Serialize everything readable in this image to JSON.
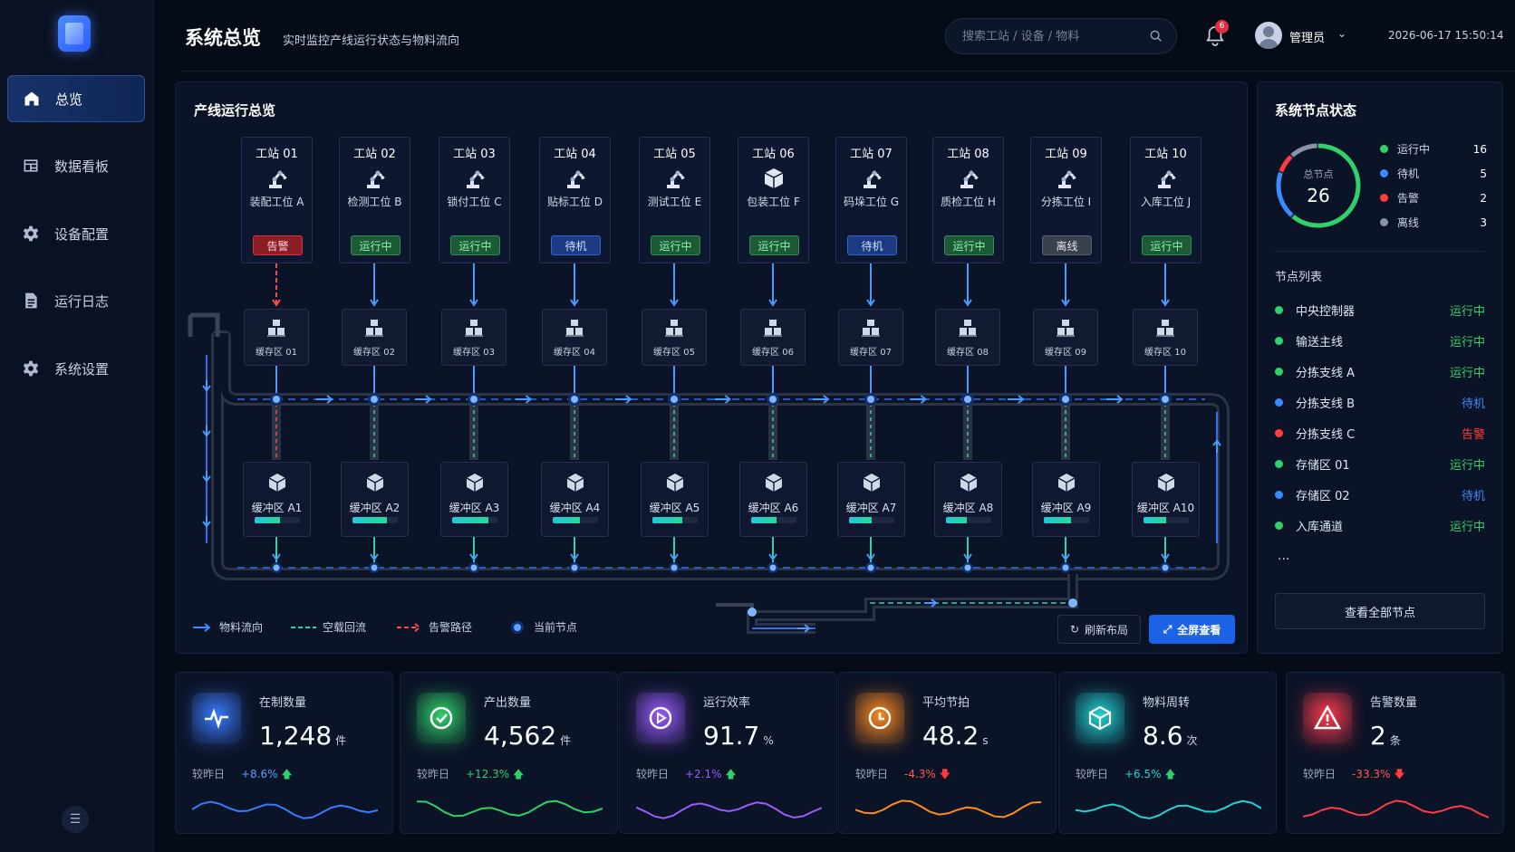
{
  "header": {
    "title": "系统总览",
    "subtitle": "实时监控产线运行状态与物料流向",
    "search_placeholder": "搜索工站 / 设备 / 物料",
    "notification_count": "6",
    "user": "管理员",
    "datetime": "2026-06-17 15:50:14"
  },
  "nav": [
    {
      "label": "总览",
      "icon": "home-icon"
    },
    {
      "label": "数据看板",
      "icon": "dashboard-icon"
    },
    {
      "label": "设备配置",
      "icon": "gear-icon"
    },
    {
      "label": "运行日志",
      "icon": "document-icon"
    },
    {
      "label": "系统设置",
      "icon": "settings-icon"
    }
  ],
  "main": {
    "title": "产线运行总览",
    "stations": [
      {
        "name": "工站 01",
        "sub": "装配工位 A",
        "status": "告警",
        "kind": "alarm",
        "icon": "robot-arm-icon"
      },
      {
        "name": "工站 02",
        "sub": "检测工位 B",
        "status": "运行中",
        "kind": "run",
        "icon": "robot-arm-icon"
      },
      {
        "name": "工站 03",
        "sub": "锁付工位 C",
        "status": "运行中",
        "kind": "run",
        "icon": "robot-arm-icon"
      },
      {
        "name": "工站 04",
        "sub": "贴标工位 D",
        "status": "待机",
        "kind": "idle",
        "icon": "robot-arm-icon"
      },
      {
        "name": "工站 05",
        "sub": "测试工位 E",
        "status": "运行中",
        "kind": "run",
        "icon": "robot-arm-icon"
      },
      {
        "name": "工站 06",
        "sub": "包装工位 F",
        "status": "运行中",
        "kind": "run",
        "icon": "package-icon"
      },
      {
        "name": "工站 07",
        "sub": "码垛工位 G",
        "status": "待机",
        "kind": "idle",
        "icon": "robot-arm-icon"
      },
      {
        "name": "工站 08",
        "sub": "质检工位 H",
        "status": "运行中",
        "kind": "run",
        "icon": "robot-arm-icon"
      },
      {
        "name": "工站 09",
        "sub": "分拣工位 I",
        "status": "离线",
        "kind": "off",
        "icon": "robot-arm-icon"
      },
      {
        "name": "工站 10",
        "sub": "入库工位 J",
        "status": "运行中",
        "kind": "run",
        "icon": "robot-arm-icon"
      }
    ],
    "caches": [
      "缓存区 01",
      "缓存区 02",
      "缓存区 03",
      "缓存区 04",
      "缓存区 05",
      "缓存区 06",
      "缓存区 07",
      "缓存区 08",
      "缓存区 09",
      "缓存区 10"
    ],
    "buffers": [
      {
        "name": "缓冲区 A1",
        "fill": 0.55
      },
      {
        "name": "缓冲区 A2",
        "fill": 0.75
      },
      {
        "name": "缓冲区 A3",
        "fill": 0.8
      },
      {
        "name": "缓冲区 A4",
        "fill": 0.6
      },
      {
        "name": "缓冲区 A5",
        "fill": 0.65
      },
      {
        "name": "缓冲区 A6",
        "fill": 0.55
      },
      {
        "name": "缓冲区 A7",
        "fill": 0.5
      },
      {
        "name": "缓冲区 A8",
        "fill": 0.45
      },
      {
        "name": "缓冲区 A9",
        "fill": 0.6
      },
      {
        "name": "缓冲区 A10",
        "fill": 0.5
      }
    ],
    "legend": {
      "material": "物料流向",
      "empty": "空载回流",
      "alarm": "告警路径",
      "current": "当前节点"
    },
    "refresh": "刷新布局",
    "fullscreen": "全屏查看"
  },
  "right": {
    "title": "系统节点状态",
    "ring_label": "总节点",
    "ring_total": "26",
    "status_counts": [
      {
        "label": "运行中",
        "count": "16",
        "color": "#2fd16a"
      },
      {
        "label": "待机",
        "count": "5",
        "color": "#3a8bff"
      },
      {
        "label": "告警",
        "count": "2",
        "color": "#ff3b3b"
      },
      {
        "label": "离线",
        "count": "3",
        "color": "#8a93a6"
      }
    ],
    "list_title": "节点列表",
    "nodes": [
      {
        "name": "中央控制器",
        "status": "运行中",
        "color": "#2fd16a"
      },
      {
        "name": "输送主线",
        "status": "运行中",
        "color": "#2fd16a"
      },
      {
        "name": "分拣支线 A",
        "status": "运行中",
        "color": "#2fd16a"
      },
      {
        "name": "分拣支线 B",
        "status": "待机",
        "color": "#3a8bff"
      },
      {
        "name": "分拣支线 C",
        "status": "告警",
        "color": "#ff3b3b"
      },
      {
        "name": "存储区 01",
        "status": "运行中",
        "color": "#2fd16a"
      },
      {
        "name": "存储区 02",
        "status": "待机",
        "color": "#3a8bff"
      },
      {
        "name": "入库通道",
        "status": "运行中",
        "color": "#2fd16a"
      }
    ],
    "more": "...",
    "view_all": "查看全部节点"
  },
  "kpis": [
    {
      "label": "在制数量",
      "value": "1,248",
      "unit": "件",
      "compare": "较昨日",
      "change": "+8.6%",
      "dir": "up",
      "color": "#3a7bff",
      "icon": "pulse-icon"
    },
    {
      "label": "产出数量",
      "value": "4,562",
      "unit": "件",
      "compare": "较昨日",
      "change": "+12.3%",
      "dir": "up",
      "color": "#2fd16a",
      "icon": "check-circle-icon"
    },
    {
      "label": "运行效率",
      "value": "91.7",
      "unit": "%",
      "compare": "较昨日",
      "change": "+2.1%",
      "dir": "up",
      "color": "#9b5cff",
      "icon": "play-circle-icon"
    },
    {
      "label": "平均节拍",
      "value": "48.2",
      "unit": "s",
      "compare": "较昨日",
      "change": "-4.3%",
      "dir": "down",
      "color": "#ff8a1f",
      "icon": "clock-icon"
    },
    {
      "label": "物料周转",
      "value": "8.6",
      "unit": "次",
      "compare": "较昨日",
      "change": "+6.5%",
      "dir": "up",
      "color": "#22d3d3",
      "icon": "cube-icon"
    },
    {
      "label": "告警数量",
      "value": "2",
      "unit": "条",
      "compare": "较昨日",
      "change": "-33.3%",
      "dir": "down",
      "color": "#ff3b4b",
      "icon": "warning-icon"
    }
  ]
}
